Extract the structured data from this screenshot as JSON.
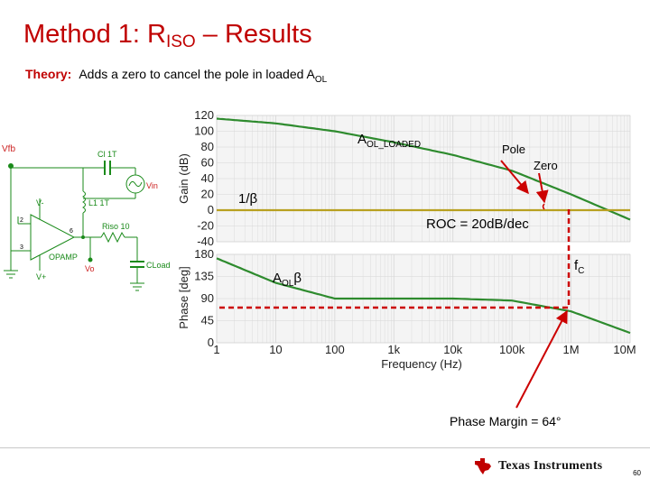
{
  "slide": {
    "title_main": "Method 1: R",
    "title_sub": "ISO",
    "title_rest": " – Results",
    "theory_label": "Theory:",
    "theory_text": "Adds a zero to cancel the pole in loaded A",
    "theory_sub": "OL",
    "page_number": "60"
  },
  "schematic": {
    "vfb": "Vfb",
    "cl": "Cl 1T",
    "vin": "Vin",
    "vminus": "V-",
    "l1": "L1 1T",
    "riso": "Riso 10",
    "opamp": "OPAMP",
    "vo": "Vo",
    "vplus": "V+",
    "cload": "CLoad",
    "pin2": "2",
    "pin3": "3",
    "pin6": "6"
  },
  "chart_data": [
    {
      "type": "line",
      "ylabel": "Gain (dB)",
      "ylim": [
        -40,
        120
      ],
      "yticks": [
        "120",
        "100",
        "80",
        "60",
        "40",
        "20",
        "0",
        "-20",
        "-40"
      ],
      "x": [
        1,
        10,
        100,
        1000,
        10000,
        100000,
        1000000,
        10000000
      ],
      "series": [
        {
          "values": [
            116,
            110,
            100,
            86,
            70,
            50,
            20,
            -12
          ]
        },
        {
          "values": [
            0,
            0,
            0,
            0,
            0,
            0,
            0,
            0
          ]
        }
      ]
    },
    {
      "type": "line",
      "ylabel": "Phase [deg]",
      "xlabel": "Frequency (Hz)",
      "ylim": [
        0,
        180
      ],
      "yticks": [
        "180",
        "135",
        "90",
        "45",
        "0"
      ],
      "xticks": [
        "1",
        "10",
        "100",
        "1k",
        "10k",
        "100k",
        "1M",
        "10M"
      ],
      "series": [
        {
          "values": [
            172,
            122,
            90,
            90,
            90,
            86,
            64,
            20
          ]
        }
      ]
    }
  ],
  "annotations": {
    "aol_loaded": "A",
    "aol_loaded_sub": "OL_LOADED",
    "pole": "Pole",
    "zero": "Zero",
    "one_over_beta": "1/β",
    "roc": "ROC = 20dB/dec",
    "fc": "f",
    "fc_sub": "C",
    "aol_beta": "A",
    "aol_beta_sub": "OL",
    "aol_beta_tail": "β",
    "phase_margin": "Phase Margin = 64°"
  },
  "brand": {
    "name": "Texas Instruments",
    "color": "#c00000",
    "curve_color": "#2e8b2e",
    "beta_color": "#b8a020"
  }
}
